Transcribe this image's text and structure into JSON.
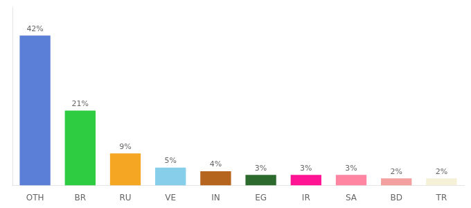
{
  "chart_data": {
    "type": "bar",
    "categories": [
      "OTH",
      "BR",
      "RU",
      "VE",
      "IN",
      "EG",
      "IR",
      "SA",
      "BD",
      "TR"
    ],
    "values": [
      42,
      21,
      9,
      5,
      4,
      3,
      3,
      3,
      2,
      2
    ],
    "value_labels": [
      "42%",
      "21%",
      "9%",
      "5%",
      "4%",
      "3%",
      "3%",
      "3%",
      "2%",
      "2%"
    ],
    "colors": [
      "#5b7ed6",
      "#2ecc40",
      "#f5a623",
      "#87ceeb",
      "#b5651d",
      "#2d6a2d",
      "#ff1493",
      "#ff85a2",
      "#f4a0a0",
      "#f5f0d8"
    ],
    "ylim": [
      0,
      50
    ],
    "data_labels": true,
    "tick_labels": "x",
    "grid": false
  }
}
